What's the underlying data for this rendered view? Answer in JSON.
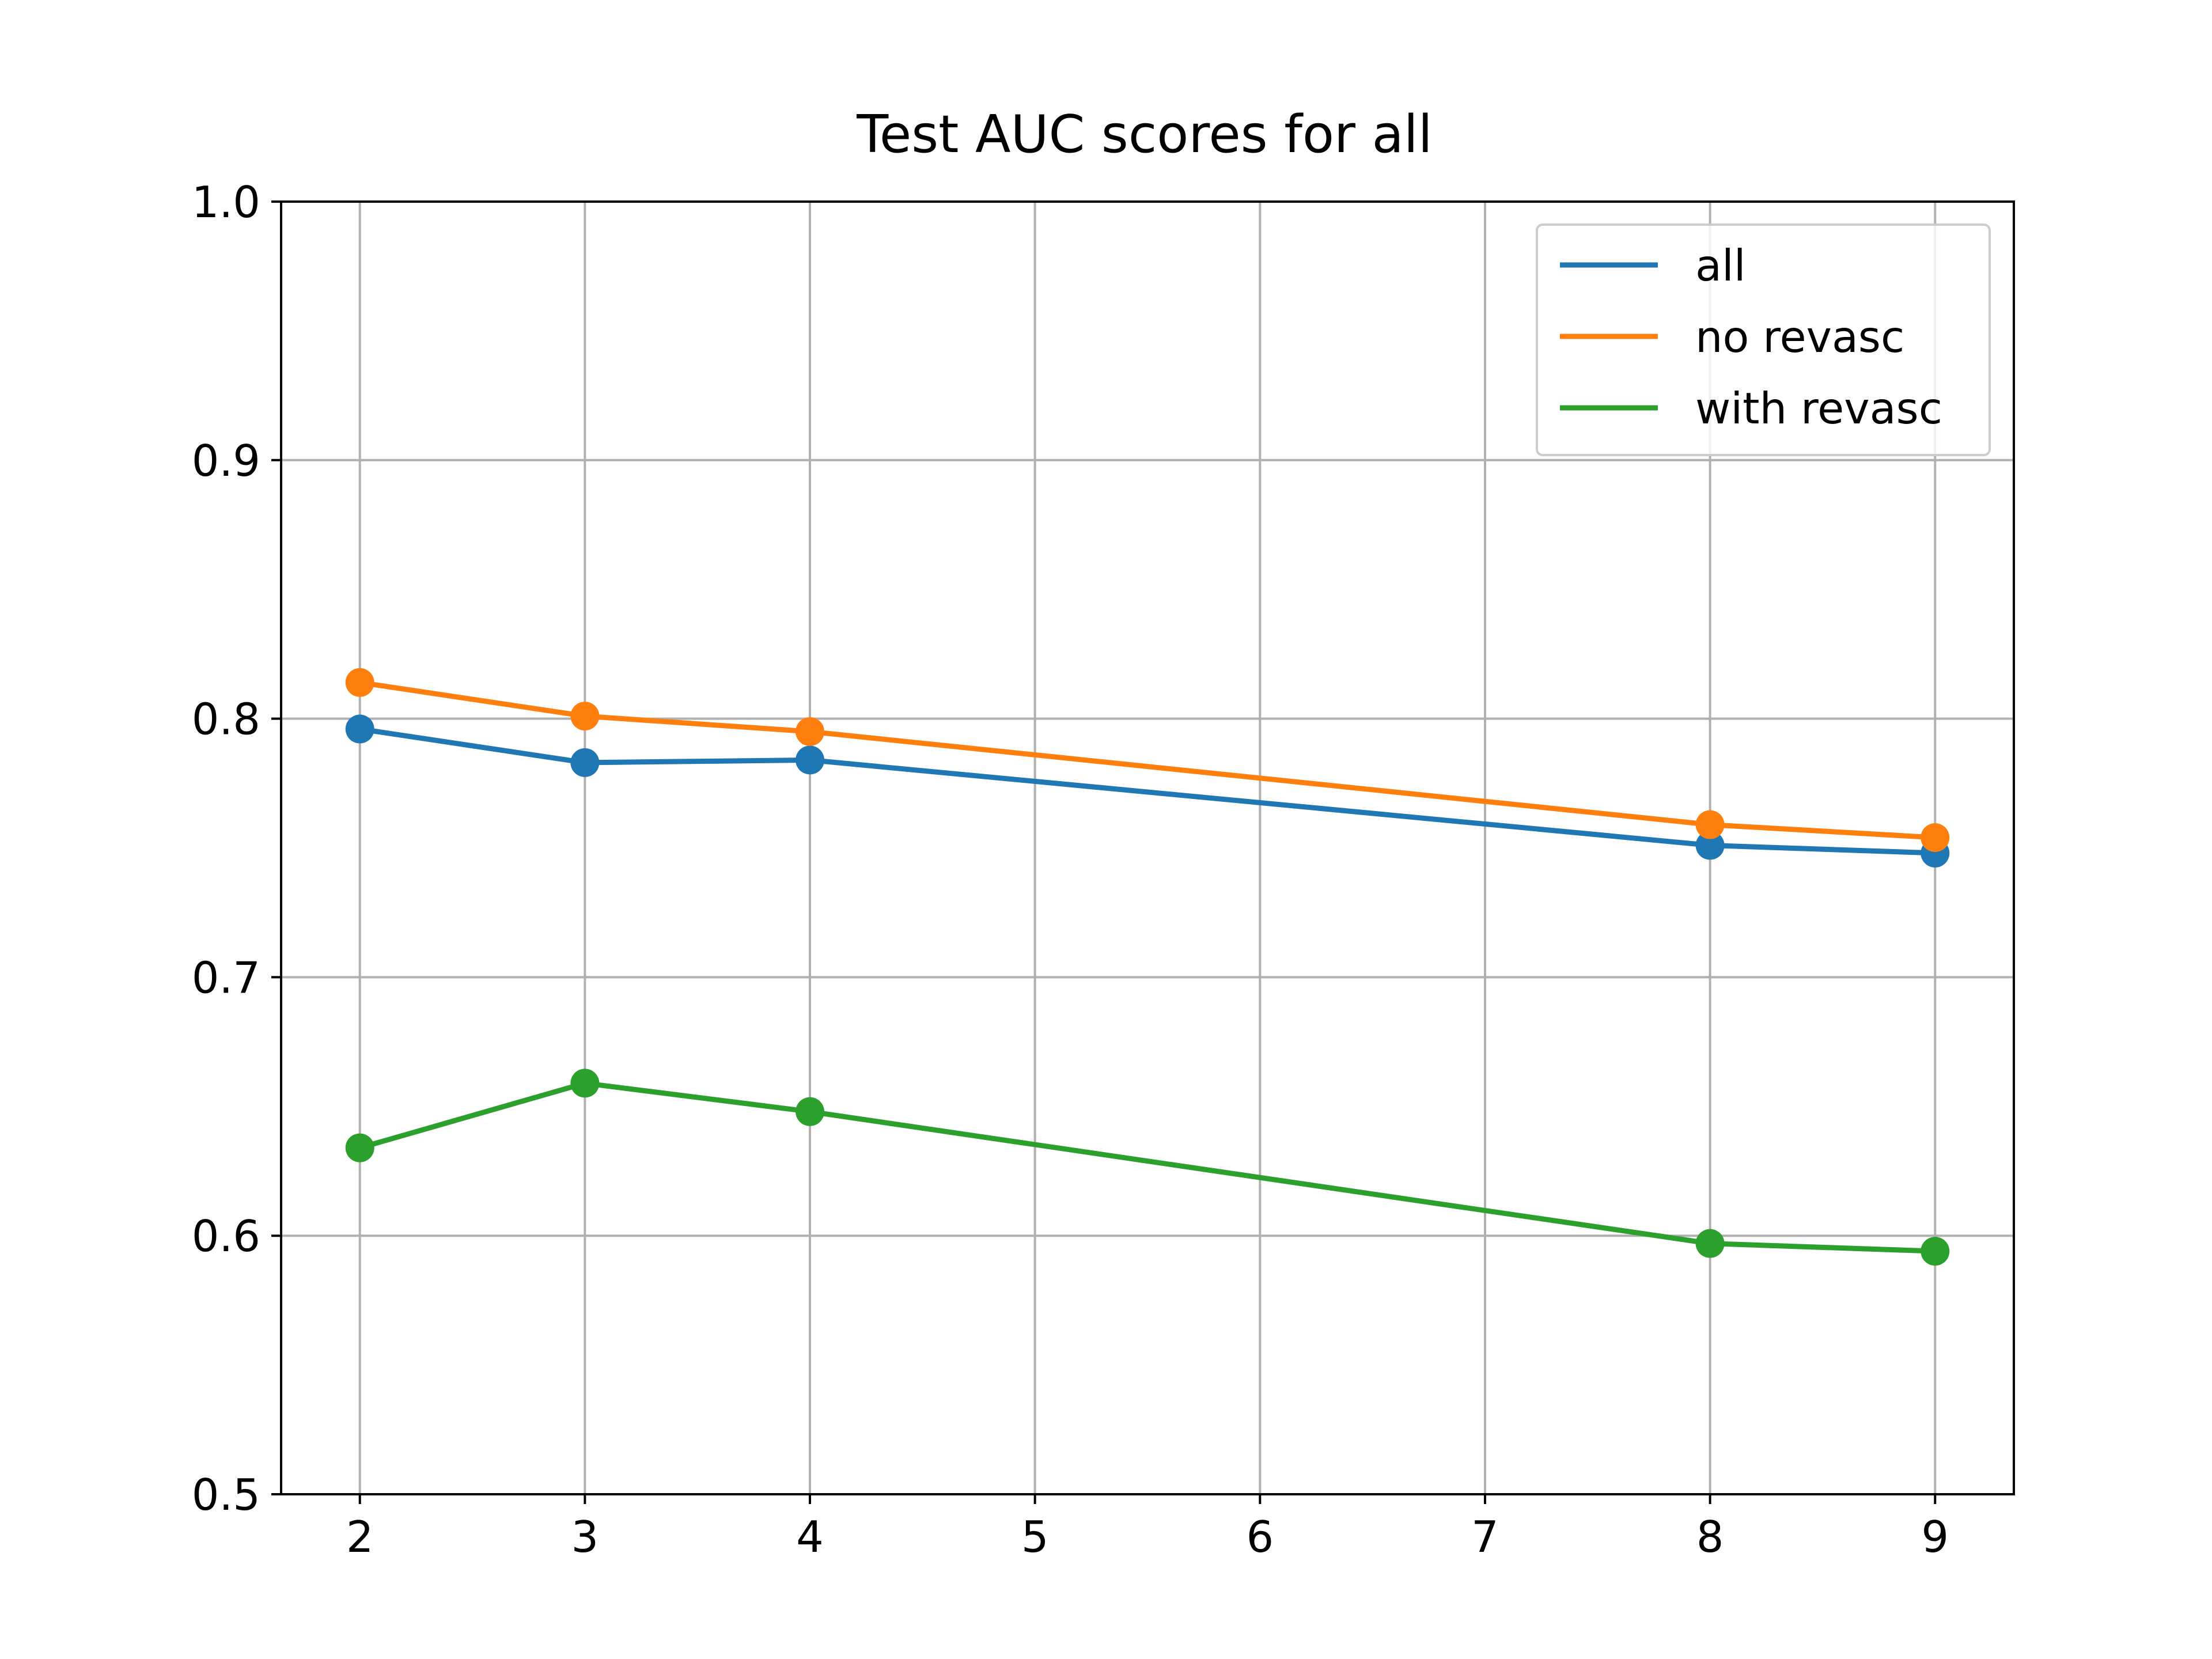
{
  "chart_data": {
    "type": "line",
    "title": "Test AUC scores for all",
    "xlabel": "",
    "ylabel": "",
    "xlim": [
      1.65,
      9.35
    ],
    "ylim": [
      0.5,
      1.0
    ],
    "xticks": [
      2,
      3,
      4,
      5,
      6,
      7,
      8,
      9
    ],
    "xtick_labels": [
      "2",
      "3",
      "4",
      "5",
      "6",
      "7",
      "8",
      "9"
    ],
    "yticks": [
      0.5,
      0.6,
      0.7,
      0.8,
      0.9,
      1.0
    ],
    "ytick_labels": [
      "0.5",
      "0.6",
      "0.7",
      "0.8",
      "0.9",
      "1.0"
    ],
    "grid": true,
    "legend_position": "top-right",
    "markers": true,
    "x": [
      2,
      3,
      4,
      8,
      9
    ],
    "series": [
      {
        "name": "all",
        "color": "#1f77b4",
        "values": [
          0.796,
          0.783,
          0.784,
          0.751,
          0.748
        ]
      },
      {
        "name": "no revasc",
        "color": "#ff7f0e",
        "values": [
          0.814,
          0.801,
          0.795,
          0.759,
          0.754
        ]
      },
      {
        "name": "with revasc",
        "color": "#2ca02c",
        "values": [
          0.634,
          0.659,
          0.648,
          0.597,
          0.594
        ]
      }
    ]
  }
}
